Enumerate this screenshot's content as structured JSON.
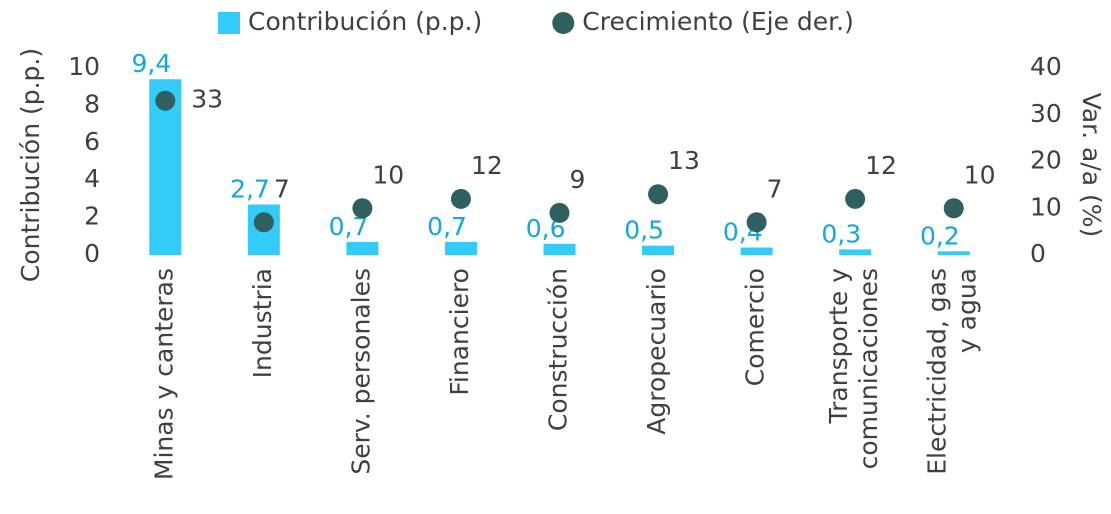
{
  "chart_data": {
    "type": "bar",
    "categories": [
      "Minas y canteras",
      "Industria",
      "Serv. personales",
      "Financiero",
      "Construcción",
      "Agropecuario",
      "Comercio",
      "Transporte y\ncomunicaciones",
      "Electricidad, gas\ny agua"
    ],
    "series": [
      {
        "name": "Contribución (p.p.)",
        "type": "bar",
        "color": "#33ccf8",
        "label_color": "#12a8dc",
        "values": [
          9.4,
          2.7,
          0.7,
          0.7,
          0.6,
          0.5,
          0.4,
          0.3,
          0.2
        ],
        "value_labels": [
          "9,4",
          "2,7",
          "0,7",
          "0,7",
          "0,6",
          "0,5",
          "0,4",
          "0,3",
          "0,2"
        ]
      },
      {
        "name": "Crecimiento (Eje der.)",
        "type": "scatter",
        "axis": "y2",
        "color": "#2f6060",
        "label_color": "#404040",
        "values": [
          33,
          7,
          10,
          12,
          9,
          13,
          7,
          12,
          10
        ]
      }
    ],
    "ylabel": "Contribución (p.p.)",
    "y2label": "Var. a/a (%)",
    "ylim": [
      0,
      10
    ],
    "yticks": [
      0,
      2,
      4,
      6,
      8,
      10
    ],
    "y2lim": [
      0,
      40
    ],
    "y2ticks": [
      0,
      10,
      20,
      30,
      40
    ],
    "grid": false,
    "legend": "top"
  }
}
